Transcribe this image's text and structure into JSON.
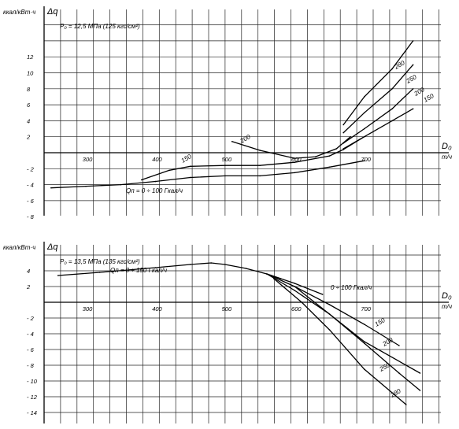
{
  "chart_data": [
    {
      "type": "line",
      "title": "P₀ = 12,5 МПа (125 кгс/см²)",
      "ylabel_unit": "ккал/кВт·ч",
      "ylabel_symbol": "Δq",
      "xlabel_symbol": "D₀",
      "xlabel_unit": "т/ч",
      "xlim": [
        240,
        810
      ],
      "ylim": [
        -8,
        14
      ],
      "xticks": [
        300,
        400,
        500,
        600,
        700
      ],
      "yticks": [
        -8,
        -6,
        -4,
        -2,
        2,
        4,
        6,
        8,
        10,
        12
      ],
      "grid": true,
      "series": [
        {
          "name": "Qп = 0 ÷ 100 Гкал/ч",
          "x": [
            250,
            300,
            350,
            400,
            450,
            500,
            550,
            600,
            650,
            700
          ],
          "y": [
            -4.4,
            -4.2,
            -4.0,
            -3.6,
            -3.1,
            -2.9,
            -2.9,
            -2.5,
            -1.8,
            -1.0
          ]
        },
        {
          "name": "150",
          "x": [
            380,
            420,
            450,
            500,
            550,
            600,
            650,
            670,
            700
          ],
          "y": [
            -3.4,
            -2.2,
            -1.7,
            -1.6,
            -1.6,
            -1.2,
            -0.4,
            0.4,
            2.0
          ]
        },
        {
          "name": "200",
          "x": [
            510,
            550,
            600,
            630,
            660,
            680
          ],
          "y": [
            1.4,
            0.3,
            -0.7,
            -0.5,
            0.5,
            2.0
          ]
        },
        {
          "name": "150",
          "x": [
            670,
            700,
            740,
            770
          ],
          "y": [
            0.5,
            2.0,
            4.0,
            5.5
          ]
        },
        {
          "name": "200",
          "x": [
            670,
            700,
            740,
            770
          ],
          "y": [
            1.2,
            3.0,
            5.5,
            8.0
          ]
        },
        {
          "name": "250",
          "x": [
            670,
            700,
            740,
            770
          ],
          "y": [
            2.5,
            5.0,
            8.0,
            11.0
          ]
        },
        {
          "name": "280",
          "x": [
            670,
            700,
            740,
            770
          ],
          "y": [
            3.5,
            7.0,
            10.5,
            14.0
          ]
        }
      ]
    },
    {
      "type": "line",
      "title": "P₀ = 13,5 МПа (135 кгс/см²)",
      "ylabel_unit": "ккал/кВт·ч",
      "ylabel_symbol": "Δq",
      "xlabel_symbol": "D₀",
      "xlabel_unit": "т/ч",
      "xlim": [
        240,
        810
      ],
      "ylim": [
        -14,
        6
      ],
      "xticks": [
        300,
        400,
        500,
        600,
        700
      ],
      "yticks": [
        -14,
        -12,
        -10,
        -8,
        -6,
        -4,
        -2,
        2,
        4
      ],
      "grid": true,
      "series": [
        {
          "name": "Qп = 0 ÷ 150 Гкал/ч",
          "x": [
            260,
            320,
            400,
            450,
            480,
            500,
            530,
            560,
            580
          ],
          "y": [
            3.4,
            3.8,
            4.4,
            4.8,
            5.0,
            4.8,
            4.3,
            3.6,
            3.0
          ]
        },
        {
          "name": "0 ÷ 100 Гкал/ч",
          "x": [
            560,
            600,
            640
          ],
          "y": [
            3.6,
            2.4,
            1.0
          ]
        },
        {
          "name": "150",
          "x": [
            560,
            600,
            650,
            700,
            750
          ],
          "y": [
            3.6,
            2.0,
            -0.3,
            -2.8,
            -5.5
          ]
        },
        {
          "name": "200",
          "x": [
            560,
            600,
            650,
            700,
            780
          ],
          "y": [
            3.6,
            1.5,
            -1.5,
            -5.0,
            -9.0
          ]
        },
        {
          "name": "250",
          "x": [
            600,
            650,
            700,
            750,
            780
          ],
          "y": [
            2.0,
            -1.5,
            -5.2,
            -9.0,
            -11.2
          ]
        },
        {
          "name": "280",
          "x": [
            570,
            610,
            650,
            700,
            760
          ],
          "y": [
            3.0,
            0.0,
            -3.5,
            -8.5,
            -13.0
          ]
        }
      ]
    }
  ]
}
